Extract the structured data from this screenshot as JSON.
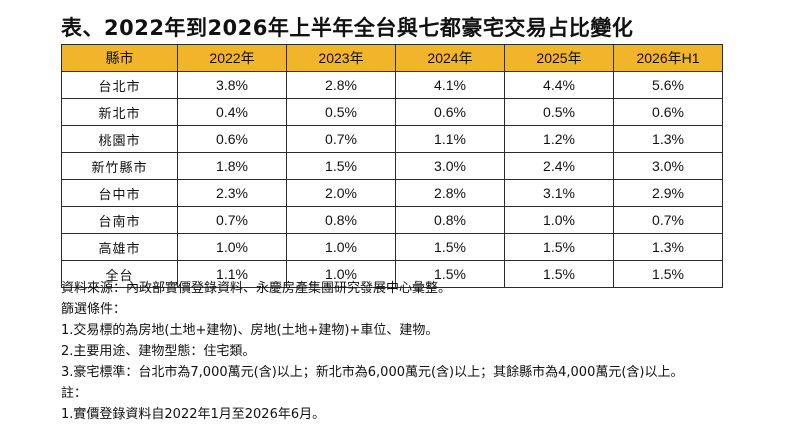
{
  "title": "表、2022年到2026年上半年全台與七都豪宅交易占比變化",
  "table": {
    "headers": [
      "縣市",
      "2022年",
      "2023年",
      "2024年",
      "2025年",
      "2026年H1"
    ],
    "rows": [
      [
        "台北市",
        "3.8%",
        "2.8%",
        "4.1%",
        "4.4%",
        "5.6%"
      ],
      [
        "新北市",
        "0.4%",
        "0.5%",
        "0.6%",
        "0.5%",
        "0.6%"
      ],
      [
        "桃園市",
        "0.6%",
        "0.7%",
        "1.1%",
        "1.2%",
        "1.3%"
      ],
      [
        "新竹縣市",
        "1.8%",
        "1.5%",
        "3.0%",
        "2.4%",
        "3.0%"
      ],
      [
        "台中市",
        "2.3%",
        "2.0%",
        "2.8%",
        "3.1%",
        "2.9%"
      ],
      [
        "台南市",
        "0.7%",
        "0.8%",
        "0.8%",
        "1.0%",
        "0.7%"
      ],
      [
        "高雄市",
        "1.0%",
        "1.0%",
        "1.5%",
        "1.5%",
        "1.3%"
      ],
      [
        "全台",
        "1.1%",
        "1.0%",
        "1.5%",
        "1.5%",
        "1.5%"
      ]
    ]
  },
  "notes": [
    "資料來源：內政部實價登錄資料、永慶房產集團研究發展中心彙整。",
    "篩選條件：",
    "1.交易標的為房地(土地+建物)、房地(土地+建物)+車位、建物。",
    "2.主要用途、建物型態：住宅類。",
    "3.豪宅標準：台北市為7,000萬元(含)以上；新北市為6,000萬元(含)以上；其餘縣市為4,000萬元(含)以上。",
    "註：",
    "1.實價登錄資料自2022年1月至2026年6月。"
  ],
  "colors": {
    "header_bg": "#f2b42b",
    "border": "#2b2b2b"
  }
}
